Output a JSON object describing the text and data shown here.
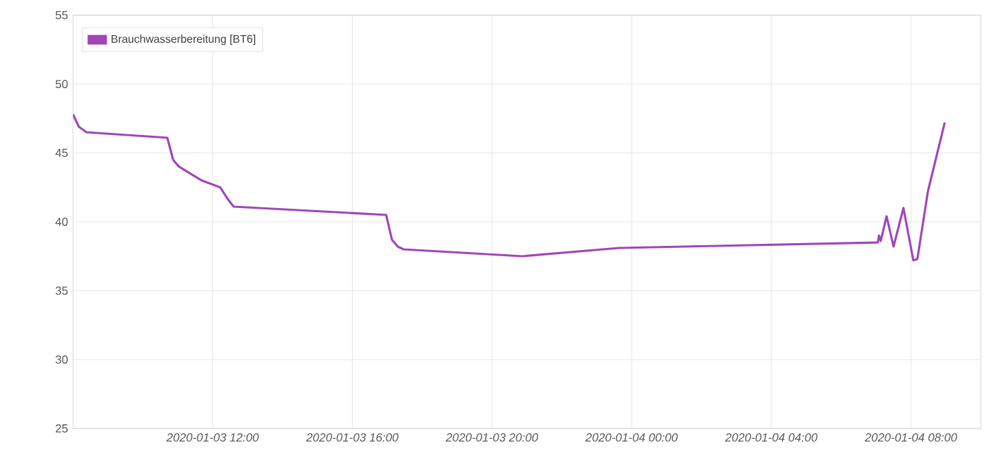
{
  "chart_data": {
    "type": "line",
    "x": [
      "2020-01-03T08:00",
      "2020-01-03T08:10",
      "2020-01-03T08:23",
      "2020-01-03T10:42",
      "2020-01-03T10:52",
      "2020-01-03T11:02",
      "2020-01-03T11:41",
      "2020-01-03T12:13",
      "2020-01-03T12:25",
      "2020-01-03T12:36",
      "2020-01-03T16:58",
      "2020-01-03T17:08",
      "2020-01-03T17:18",
      "2020-01-03T17:28",
      "2020-01-03T20:52",
      "2020-01-03T23:38",
      "2020-01-04T01:30",
      "2020-01-04T07:03",
      "2020-01-04T07:05",
      "2020-01-04T07:08",
      "2020-01-04T07:18",
      "2020-01-04T07:30",
      "2020-01-04T07:47",
      "2020-01-04T08:04",
      "2020-01-04T08:11",
      "2020-01-04T08:29",
      "2020-01-04T08:58"
    ],
    "series": [
      {
        "name": "Brauchwasserbereitung [BT6]",
        "color": "#a046b8",
        "values": [
          47.8,
          46.9,
          46.5,
          46.1,
          44.5,
          44.0,
          43.0,
          42.5,
          41.7,
          41.1,
          40.5,
          38.7,
          38.2,
          38.0,
          37.5,
          38.1,
          38.2,
          38.5,
          39.0,
          38.6,
          40.4,
          38.2,
          41.0,
          37.2,
          37.3,
          42.2,
          47.2
        ]
      }
    ],
    "xlim": [
      "2020-01-03T08:00",
      "2020-01-04T10:00"
    ],
    "ylim": [
      25,
      55
    ],
    "xticks": [
      {
        "value": "2020-01-03T12:00",
        "label": "2020-01-03 12:00"
      },
      {
        "value": "2020-01-03T16:00",
        "label": "2020-01-03 16:00"
      },
      {
        "value": "2020-01-03T20:00",
        "label": "2020-01-03 20:00"
      },
      {
        "value": "2020-01-04T00:00",
        "label": "2020-01-04 00:00"
      },
      {
        "value": "2020-01-04T04:00",
        "label": "2020-01-04 04:00"
      },
      {
        "value": "2020-01-04T08:00",
        "label": "2020-01-04 08:00"
      }
    ],
    "yticks": [
      25,
      30,
      35,
      40,
      45,
      50,
      55
    ],
    "grid": true,
    "legend": "top left"
  }
}
